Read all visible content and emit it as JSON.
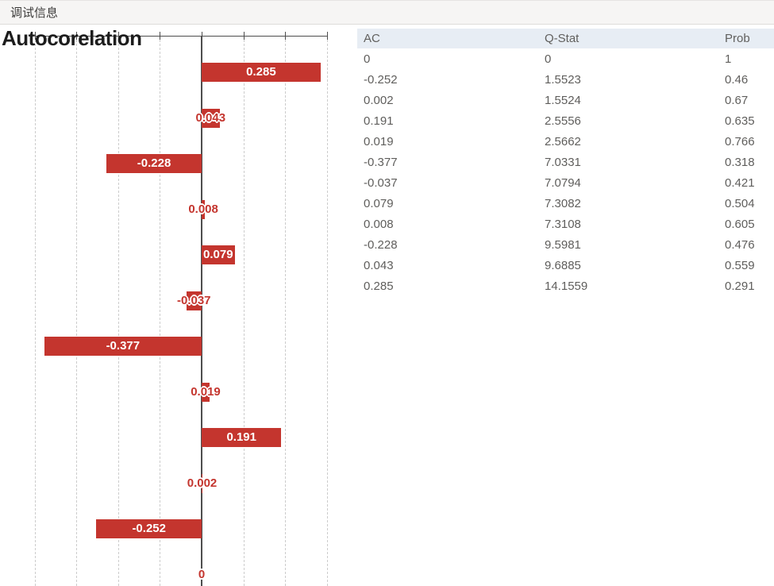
{
  "titlebar": {
    "title": "调试信息"
  },
  "chart_data": {
    "type": "bar",
    "orientation": "horizontal",
    "title": "Autocorelation",
    "xlabel": "",
    "ylabel": "",
    "values_top_to_bottom": [
      0.285,
      0.043,
      -0.228,
      0.008,
      0.079,
      -0.037,
      -0.377,
      0.019,
      0.191,
      0.002,
      -0.252,
      0
    ],
    "xlim": [
      -0.4,
      0.3
    ],
    "gridline_step": 0.1,
    "grid": true,
    "legend": "none",
    "bar_color": "#c4352e",
    "label_color_inside": "#ffffff",
    "label_color_outside": "#c4352e",
    "axis_color": "#4e4e4e",
    "gridline_color": "#cccccc"
  },
  "table": {
    "header_bg": "#e7edf4",
    "columns": [
      "AC",
      "Q-Stat",
      "Prob"
    ],
    "rows": [
      [
        "0",
        "0",
        "1"
      ],
      [
        "-0.252",
        "1.5523",
        "0.46"
      ],
      [
        "0.002",
        "1.5524",
        "0.67"
      ],
      [
        "0.191",
        "2.5556",
        "0.635"
      ],
      [
        "0.019",
        "2.5662",
        "0.766"
      ],
      [
        "-0.377",
        "7.0331",
        "0.318"
      ],
      [
        "-0.037",
        "7.0794",
        "0.421"
      ],
      [
        "0.079",
        "7.3082",
        "0.504"
      ],
      [
        "0.008",
        "7.3108",
        "0.605"
      ],
      [
        "-0.228",
        "9.5981",
        "0.476"
      ],
      [
        "0.043",
        "9.6885",
        "0.559"
      ],
      [
        "0.285",
        "14.1559",
        "0.291"
      ]
    ]
  }
}
